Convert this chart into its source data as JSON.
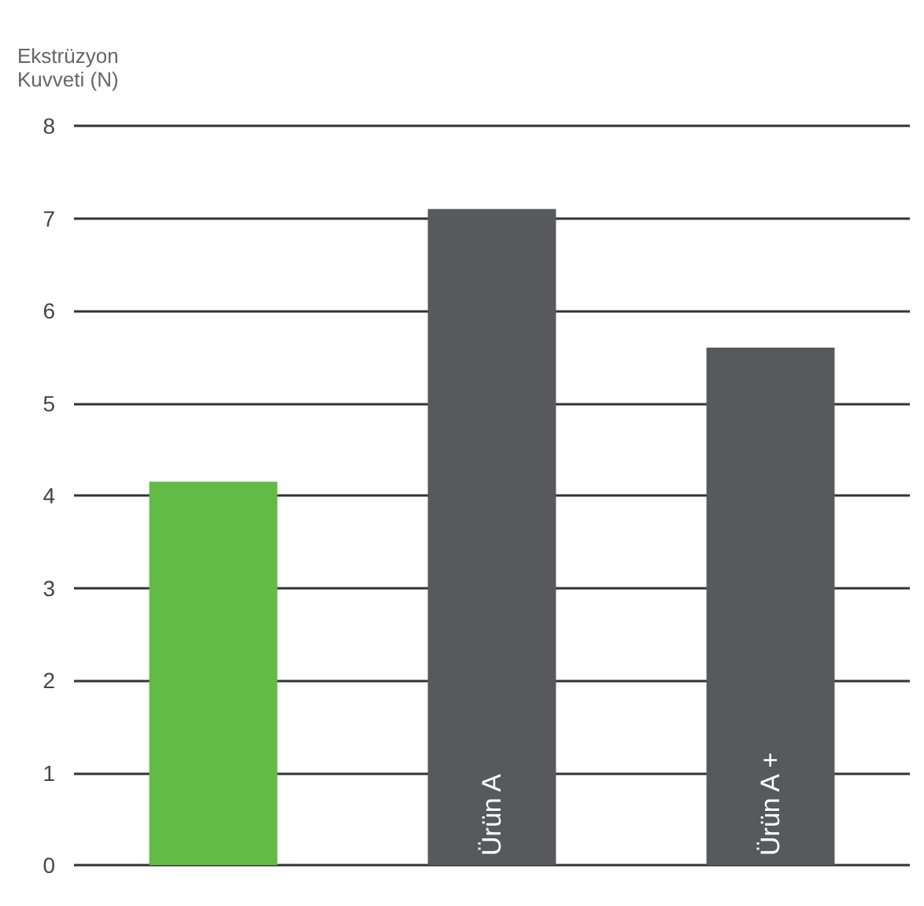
{
  "chart_data": {
    "type": "bar",
    "ylabel": "Ekstrüzyon\nKuvveti (N)",
    "categories": [
      null,
      "Ürün A",
      "Ürün A +"
    ],
    "values": [
      4.15,
      7.1,
      5.6
    ],
    "colors": [
      "#62bb46",
      "#58595b",
      "#58595b"
    ],
    "ylim": [
      0,
      8
    ],
    "yticks": [
      0,
      1,
      2,
      3,
      4,
      5,
      6,
      7,
      8
    ],
    "grid": "y"
  }
}
